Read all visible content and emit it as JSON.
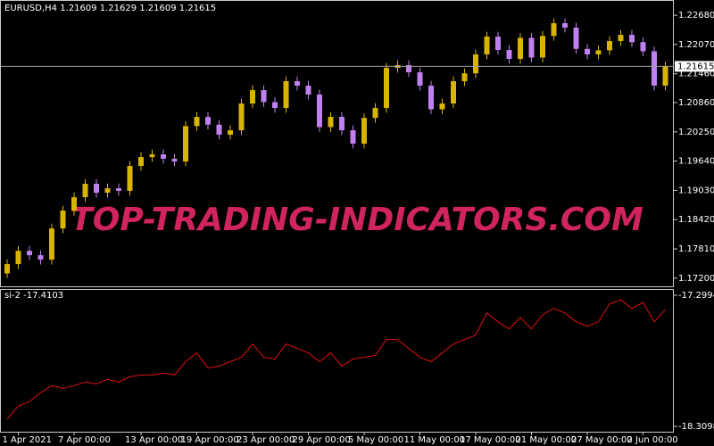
{
  "chart_data": [
    {
      "type": "candlestick",
      "title": "EURUSD,H4  1.21609 1.21629 1.21609 1.21615",
      "watermark": "TOP-TRADING-INDICATORS.COM",
      "categories": [
        null,
        "1 Apr 2021",
        null,
        null,
        null,
        null,
        "7 Apr 00:00",
        null,
        null,
        null,
        null,
        null,
        "13 Apr 00:00",
        null,
        null,
        null,
        null,
        "19 Apr 00:00",
        null,
        null,
        null,
        null,
        "23 Apr 00:00",
        null,
        null,
        null,
        null,
        "29 Apr 00:00",
        null,
        null,
        null,
        null,
        "5 May 00:00",
        null,
        null,
        null,
        null,
        "11 May 00:00",
        null,
        null,
        null,
        null,
        "17 May 00:00",
        null,
        null,
        null,
        null,
        "21 May 00:00",
        null,
        null,
        null,
        null,
        "27 May 00:00",
        null,
        null,
        null,
        null,
        "2 Jun 00:00",
        null,
        null
      ],
      "open": [
        1.173,
        1.17493,
        1.1777,
        1.17679,
        1.17586,
        1.18237,
        1.18609,
        1.18888,
        1.19167,
        1.18981,
        1.19074,
        1.1902,
        1.19539,
        1.19725,
        1.19781,
        1.1969,
        1.19632,
        1.2037,
        1.20562,
        1.204,
        1.2019,
        1.20283,
        1.20841,
        1.2112,
        1.2087,
        1.20748,
        1.21306,
        1.21213,
        1.21027,
        1.2035,
        1.20562,
        1.20283,
        1.20004,
        1.2054,
        1.20748,
        1.21585,
        1.21641,
        1.21492,
        1.21213,
        1.2072,
        1.20841,
        1.21306,
        1.2147,
        1.21864,
        1.22236,
        1.21957,
        1.21771,
        1.2221,
        1.218,
        1.2225,
        1.22515,
        1.22422,
        1.2198,
        1.21864,
        1.2195,
        1.22143,
        1.22273,
        1.2212,
        1.2193,
        1.21213
      ],
      "high": [
        1.17593,
        1.1787,
        1.1787,
        1.17779,
        1.18337,
        1.18709,
        1.18988,
        1.19267,
        1.19267,
        1.19174,
        1.19174,
        1.19639,
        1.19825,
        1.19881,
        1.19881,
        1.1979,
        1.2047,
        1.20662,
        1.20662,
        1.205,
        1.20383,
        1.20941,
        1.2122,
        1.2122,
        1.2097,
        1.21406,
        1.21406,
        1.21313,
        1.21127,
        1.20662,
        1.20662,
        1.20383,
        1.2064,
        1.20848,
        1.21685,
        1.21741,
        1.21741,
        1.21592,
        1.21313,
        1.20941,
        1.21406,
        1.2157,
        1.21964,
        1.22336,
        1.22336,
        1.22057,
        1.2231,
        1.2231,
        1.2235,
        1.22615,
        1.22615,
        1.22522,
        1.2208,
        1.2205,
        1.22243,
        1.22373,
        1.22373,
        1.2222,
        1.2203,
        1.21715
      ],
      "low": [
        1.172,
        1.17393,
        1.17579,
        1.17486,
        1.17486,
        1.18137,
        1.18509,
        1.18788,
        1.18881,
        1.18881,
        1.1892,
        1.1892,
        1.19439,
        1.19625,
        1.1959,
        1.19532,
        1.19532,
        1.2027,
        1.203,
        1.2009,
        1.2009,
        1.20183,
        1.20741,
        1.2077,
        1.20648,
        1.20648,
        1.21113,
        1.20927,
        1.2025,
        1.2025,
        1.20183,
        1.19904,
        1.19904,
        1.2044,
        1.20648,
        1.21485,
        1.21392,
        1.21113,
        1.2062,
        1.2062,
        1.20741,
        1.21206,
        1.2137,
        1.21764,
        1.21857,
        1.21671,
        1.21671,
        1.217,
        1.217,
        1.2215,
        1.22322,
        1.2188,
        1.21764,
        1.21764,
        1.2185,
        1.22043,
        1.2202,
        1.2183,
        1.21113,
        1.21113
      ],
      "close": [
        1.17493,
        1.1777,
        1.17679,
        1.17586,
        1.18237,
        1.18609,
        1.18888,
        1.19167,
        1.18981,
        1.19074,
        1.1902,
        1.19539,
        1.19725,
        1.19781,
        1.1969,
        1.19632,
        1.2037,
        1.20562,
        1.204,
        1.2019,
        1.20283,
        1.20841,
        1.2112,
        1.2087,
        1.20748,
        1.21306,
        1.21213,
        1.21027,
        1.2035,
        1.20562,
        1.20283,
        1.20004,
        1.2054,
        1.20748,
        1.21585,
        1.21641,
        1.21492,
        1.21213,
        1.2072,
        1.20841,
        1.21306,
        1.2147,
        1.21864,
        1.22236,
        1.21957,
        1.21771,
        1.2221,
        1.218,
        1.2225,
        1.22515,
        1.22422,
        1.2198,
        1.21864,
        1.2195,
        1.22143,
        1.22273,
        1.2212,
        1.2193,
        1.21213,
        1.21615
      ],
      "up_color": "#d8b400",
      "down_color": "#c080f0",
      "current_price": 1.21615,
      "ylim": [
        1.1703,
        1.2298
      ],
      "yticks": [
        {
          "value": 1.2268,
          "label": "1.22680"
        },
        {
          "value": 1.2207,
          "label": "1.22070"
        },
        {
          "value": 1.2146,
          "label": "1.21460"
        },
        {
          "value": 1.2086,
          "label": "1.20860"
        },
        {
          "value": 1.2025,
          "label": "1.20250"
        },
        {
          "value": 1.1964,
          "label": "1.19640"
        },
        {
          "value": 1.1903,
          "label": "1.19030"
        },
        {
          "value": 1.1842,
          "label": "1.18420"
        },
        {
          "value": 1.1781,
          "label": "1.17810"
        },
        {
          "value": 1.172,
          "label": "1.17200"
        }
      ]
    },
    {
      "type": "line",
      "title": "si-2 -17.4103",
      "color": "#e01010",
      "values": [
        -18.2552,
        -18.1528,
        -18.1187,
        -18.0504,
        -17.9958,
        -18.0163,
        -17.9958,
        -17.9685,
        -17.9822,
        -17.948,
        -17.9685,
        -17.9276,
        -17.9139,
        -17.9139,
        -17.9002,
        -17.9139,
        -17.8115,
        -17.7432,
        -17.8593,
        -17.8456,
        -17.8115,
        -17.7774,
        -17.675,
        -17.7774,
        -17.791,
        -17.675,
        -17.7091,
        -17.7432,
        -17.8115,
        -17.7432,
        -17.8456,
        -17.791,
        -17.7774,
        -17.7637,
        -17.6408,
        -17.6408,
        -17.7091,
        -17.7774,
        -17.8115,
        -17.7432,
        -17.675,
        -17.6408,
        -17.6067,
        -17.436,
        -17.5043,
        -17.5589,
        -17.4701,
        -17.5589,
        -17.4497,
        -17.4019,
        -17.436,
        -17.5043,
        -17.5384,
        -17.5043,
        -17.3677,
        -17.3336,
        -17.4019,
        -17.3541,
        -17.5043,
        -17.4103
      ],
      "ylim": [
        -18.3508,
        -17.2585
      ],
      "yticks": [
        -17.2994,
        -18.3098
      ]
    }
  ]
}
